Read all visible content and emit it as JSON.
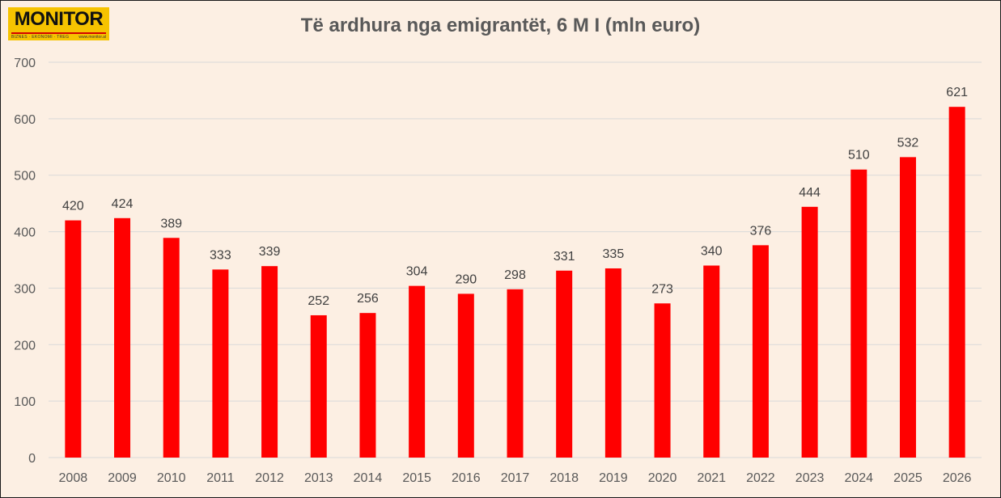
{
  "logo": {
    "text": "MONITOR",
    "tagline": "BIZNES · EKONOMI · TREG",
    "url": "www.monitor.al",
    "bg_color": "#f6c300",
    "rule_color": "#d40000"
  },
  "chart_data": {
    "type": "bar",
    "title": "Të ardhura nga emigrantët, 6 M I (mln euro)",
    "xlabel": "",
    "ylabel": "",
    "categories": [
      "2008",
      "2009",
      "2010",
      "2011",
      "2012",
      "2013",
      "2014",
      "2015",
      "2016",
      "2017",
      "2018",
      "2019",
      "2020",
      "2021",
      "2022",
      "2023",
      "2024",
      "2025",
      "2026"
    ],
    "values": [
      420,
      424,
      389,
      333,
      339,
      252,
      256,
      304,
      290,
      298,
      331,
      335,
      273,
      340,
      376,
      444,
      510,
      532,
      621
    ],
    "ylim": [
      0,
      700
    ],
    "yticks": [
      0,
      100,
      200,
      300,
      400,
      500,
      600,
      700
    ],
    "grid": true,
    "legend": "none",
    "bar_color": "#ff0000",
    "grid_color": "#d9d9d9",
    "background_color": "#fcefe3"
  }
}
